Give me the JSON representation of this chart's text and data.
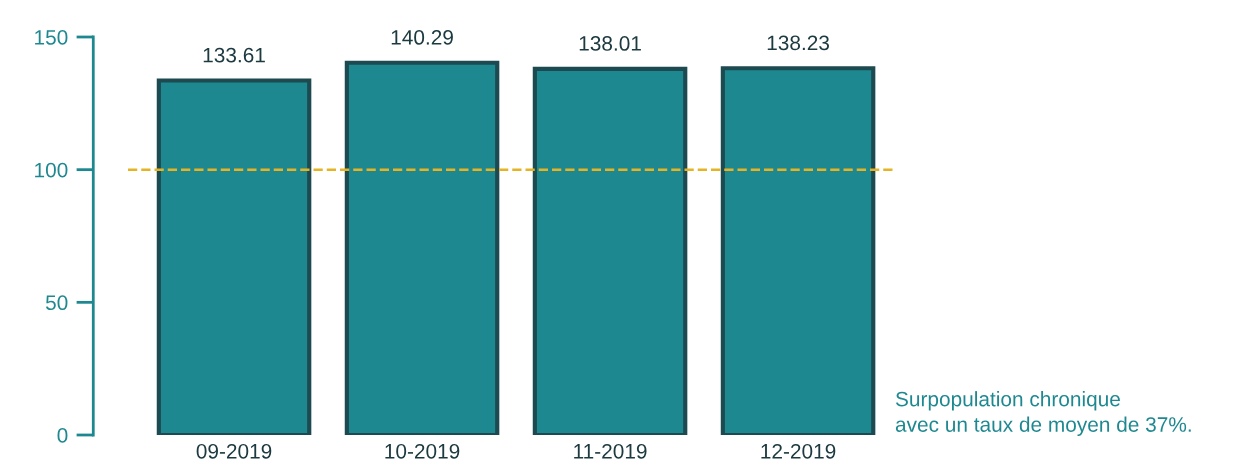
{
  "chart_data": {
    "type": "bar",
    "categories": [
      "09-2019",
      "10-2019",
      "11-2019",
      "12-2019"
    ],
    "values": [
      133.61,
      140.29,
      138.01,
      138.23
    ],
    "color": "#1e8890",
    "data_labels": true,
    "ylim": [
      0,
      150
    ],
    "yticks": [
      0,
      50,
      100,
      150
    ],
    "ref_lines": [
      {
        "axis": "y",
        "value": 100,
        "label": null,
        "color": "#e6b422",
        "line_style": "dashed"
      }
    ],
    "annotations": [
      "Surpopulation chronique\navec un taux de moyen de 37%."
    ],
    "grid": false,
    "legend": false
  }
}
